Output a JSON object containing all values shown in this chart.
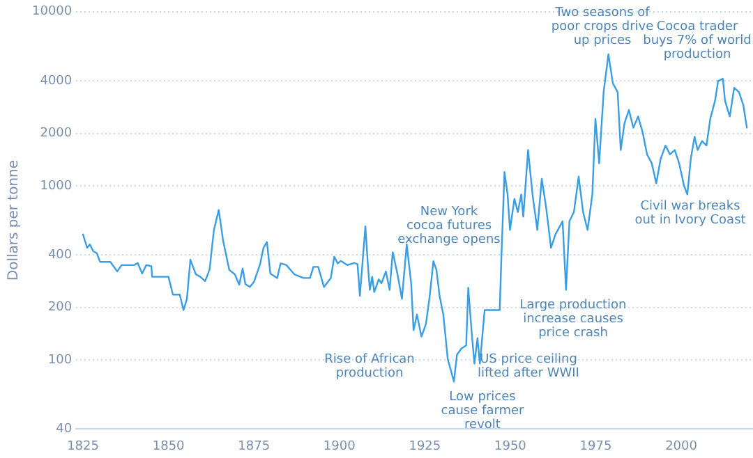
{
  "chart_data": {
    "type": "line",
    "ylabel": "Dollars per tonne",
    "log": "y",
    "grid": "y",
    "marker": "none",
    "line_style": "solid",
    "xlim": [
      1823,
      2021
    ],
    "xticks": [
      1825,
      1850,
      1875,
      1900,
      1925,
      1950,
      1975,
      2000
    ],
    "ylim": [
      40,
      10000
    ],
    "yticks": [
      40,
      100,
      200,
      400,
      1000,
      2000,
      4000,
      10000
    ],
    "x": [
      1825,
      1826.2,
      1827,
      1828,
      1829,
      1830,
      1833,
      1835,
      1836.3,
      1840,
      1841,
      1842.3,
      1843.5,
      1845,
      1845.2,
      1850,
      1851.3,
      1853.3,
      1854.4,
      1855.4,
      1856.4,
      1858,
      1859.3,
      1860.7,
      1862,
      1863.3,
      1864.7,
      1866,
      1867.8,
      1869.4,
      1870.7,
      1871.7,
      1872.5,
      1873.8,
      1875,
      1876.8,
      1877.8,
      1878.8,
      1879.8,
      1881.8,
      1882.8,
      1884.5,
      1886.8,
      1889.5,
      1891.4,
      1892.4,
      1893.8,
      1895.5,
      1897.5,
      1898.5,
      1899.5,
      1900.4,
      1902.3,
      1904.3,
      1905.3,
      1906,
      1906.8,
      1907.6,
      1908.3,
      1908.9,
      1909.6,
      1910.2,
      1911.5,
      1912.3,
      1913.6,
      1914.7,
      1915.6,
      1917,
      1918.3,
      1919.7,
      1921,
      1921.7,
      1922.7,
      1924,
      1925.3,
      1926.4,
      1927.5,
      1928.4,
      1929.3,
      1930.4,
      1931.7,
      1933.5,
      1934.4,
      1935.7,
      1937.1,
      1937.7,
      1938.8,
      1939.5,
      1940.4,
      1941.1,
      1942.5,
      1946.9,
      1947.4,
      1948.3,
      1949.2,
      1949.9,
      1951.2,
      1952.2,
      1953.2,
      1953.8,
      1955.2,
      1956.5,
      1957.9,
      1959.2,
      1960.5,
      1961.9,
      1963.2,
      1965.3,
      1966.3,
      1967.3,
      1968.6,
      1970,
      1971.3,
      1972.6,
      1974,
      1974.9,
      1976,
      1977.3,
      1978.7,
      1980,
      1981.4,
      1982.3,
      1983.4,
      1984.7,
      1986,
      1987.4,
      1988.7,
      1990,
      1991.4,
      1992.7,
      1994,
      1995.4,
      1996.7,
      1998.1,
      1999.4,
      2000.8,
      2001.8,
      2002.8,
      2003.9,
      2004.8,
      2006.1,
      2007.4,
      2008.5,
      2009.9,
      2010.8,
      2012.2,
      2012.8,
      2014.2,
      2015.5,
      2016.9,
      2018.2,
      2019.2
    ],
    "series": [
      {
        "color": "#3a9ee4",
        "values": [
          525,
          440,
          460,
          420,
          410,
          365,
          365,
          322,
          350,
          350,
          360,
          313,
          350,
          345,
          300,
          300,
          237,
          237,
          193,
          224,
          376,
          310,
          300,
          283,
          328,
          557,
          726,
          481,
          328,
          310,
          270,
          335,
          272,
          262,
          280,
          354,
          440,
          475,
          313,
          295,
          358,
          350,
          310,
          295,
          295,
          342,
          342,
          262,
          295,
          391,
          358,
          370,
          350,
          360,
          355,
          233,
          370,
          584,
          360,
          252,
          300,
          245,
          290,
          275,
          322,
          252,
          415,
          310,
          224,
          461,
          275,
          148,
          182,
          136,
          160,
          230,
          369,
          328,
          233,
          182,
          101,
          75,
          107,
          116,
          121,
          259,
          136,
          95,
          133,
          95,
          193,
          193,
          391,
          1197,
          891,
          557,
          841,
          705,
          891,
          664,
          1604,
          891,
          557,
          1096,
          747,
          440,
          525,
          626,
          252,
          626,
          705,
          1128,
          705,
          557,
          891,
          2425,
          1345,
          3452,
          5690,
          3878,
          3452,
          1604,
          2286,
          2723,
          2155,
          2500,
          2032,
          1514,
          1345,
          1033,
          1429,
          1703,
          1514,
          1604,
          1345,
          1003,
          891,
          1429,
          1914,
          1604,
          1806,
          1703,
          2425,
          3083,
          3996,
          4121,
          3083,
          2500,
          3656,
          3452,
          2893,
          2155
        ]
      }
    ],
    "annotations": [
      "Rise of African\nproduction",
      "New York\ncocoa futures\nexchange opens",
      "Low prices\ncause farmer\nrevolt",
      "US price ceiling\nlifted after WWII",
      "Large production\nincrease causes\nprice crash",
      "Two seasons of\npoor crops drive\nup prices",
      "Cocoa trader\nbuys 7% of world\nproduction",
      "Civil war breaks\nout in Ivory Coast"
    ]
  }
}
